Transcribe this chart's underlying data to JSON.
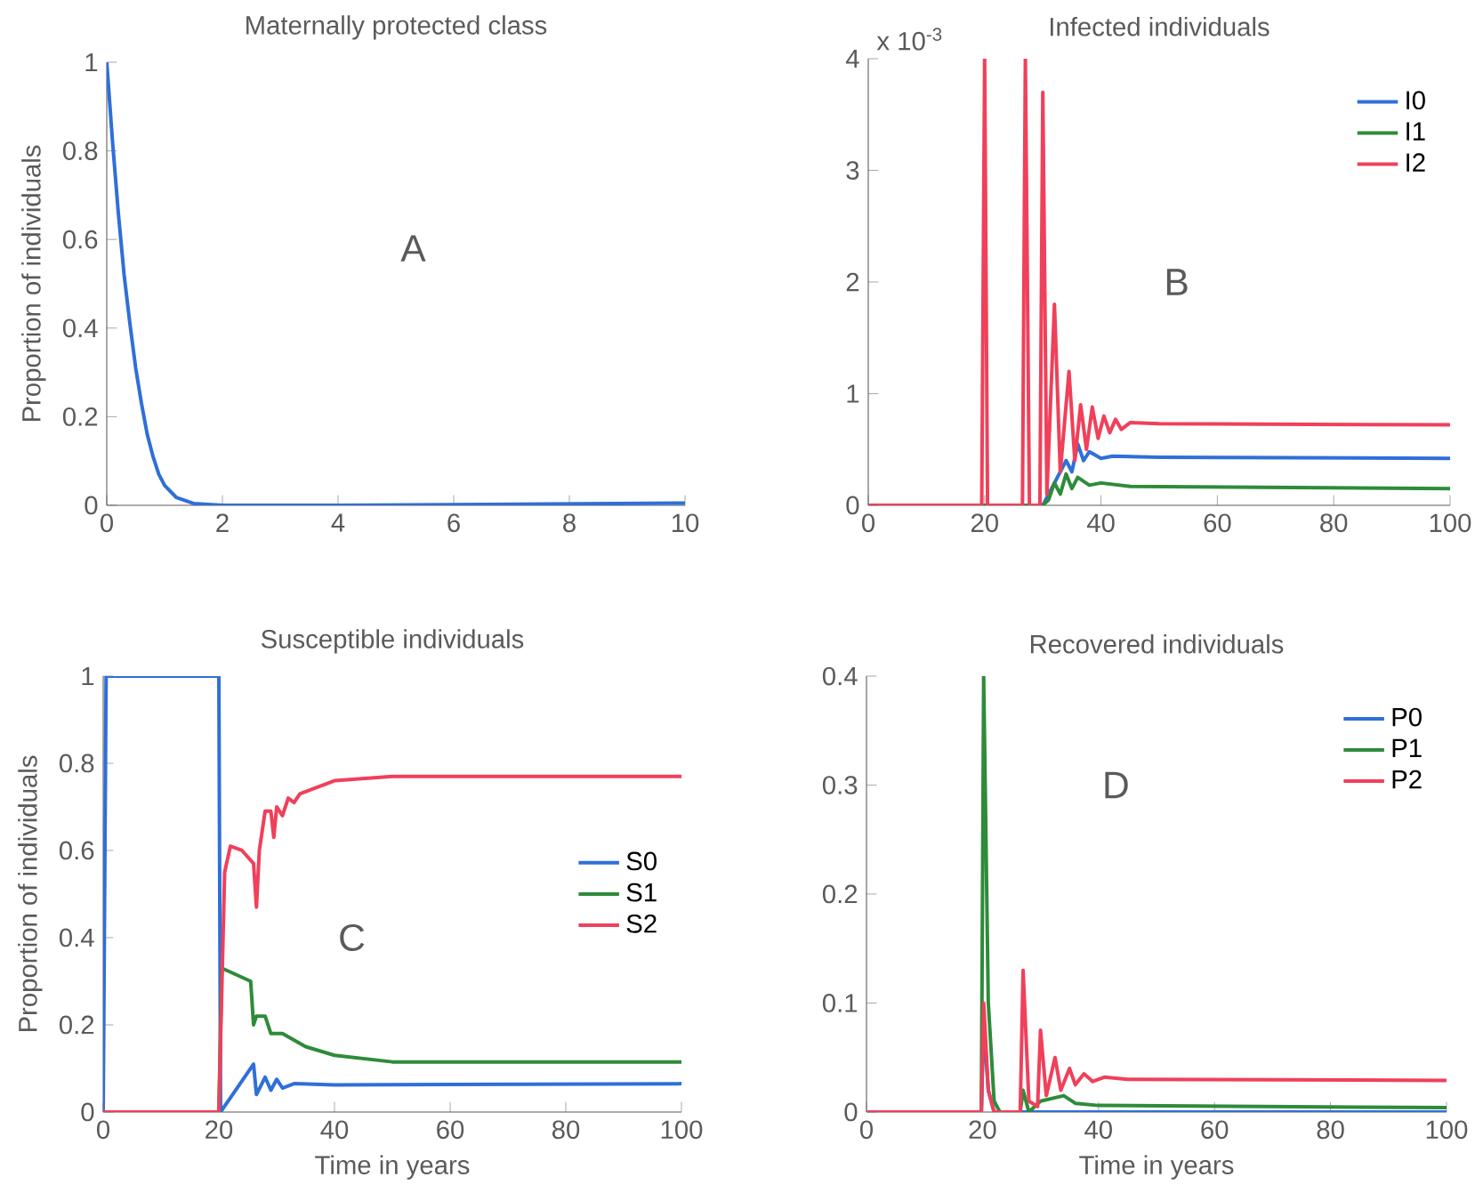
{
  "chart_data": [
    {
      "type": "line",
      "title": "Maternally protected class",
      "ylabel": "Proportion of individuals",
      "xlim": [
        0,
        10
      ],
      "ylim": [
        0,
        1
      ],
      "xticks": [
        0,
        2,
        4,
        6,
        8,
        10
      ],
      "yticks": [
        0,
        0.2,
        0.4,
        0.6,
        0.8,
        1
      ],
      "annotations": [
        "A"
      ],
      "series": [
        {
          "color": "#2f6fd8",
          "x": [
            0,
            0.1,
            0.2,
            0.3,
            0.4,
            0.5,
            0.6,
            0.7,
            0.8,
            0.9,
            1,
            1.2,
            1.5,
            2,
            4,
            10
          ],
          "values": [
            1,
            0.82,
            0.66,
            0.52,
            0.41,
            0.31,
            0.23,
            0.16,
            0.11,
            0.07,
            0.045,
            0.018,
            0.004,
            0,
            0,
            0.005
          ]
        }
      ]
    },
    {
      "type": "line",
      "title": "Infected individuals",
      "xlim": [
        0,
        100
      ],
      "ylim": [
        0,
        4
      ],
      "xticks": [
        0,
        20,
        40,
        60,
        80,
        100
      ],
      "yticks": [
        0,
        1,
        2,
        3,
        4
      ],
      "annotations": [
        "B",
        "x 10$^{-3}$"
      ],
      "legend": "top right",
      "series": [
        {
          "name": "I0",
          "color": "#2f6fd8",
          "x": [
            0,
            30,
            32,
            34,
            35,
            36,
            37,
            38,
            40,
            42,
            50,
            100
          ],
          "values": [
            0,
            0,
            0.2,
            0.4,
            0.3,
            0.55,
            0.4,
            0.48,
            0.42,
            0.44,
            0.43,
            0.42
          ]
        },
        {
          "name": "I1",
          "color": "#2e8b3a",
          "x": [
            0,
            30,
            31,
            32,
            33,
            34,
            35,
            36,
            38,
            40,
            45,
            100
          ],
          "values": [
            0,
            0,
            0.05,
            0.2,
            0.1,
            0.28,
            0.15,
            0.25,
            0.18,
            0.2,
            0.17,
            0.15
          ]
        },
        {
          "name": "I2",
          "color": "#f0405a",
          "x": [
            0,
            19.5,
            20,
            20.5,
            26.5,
            27,
            27.7,
            29.5,
            30,
            30.7,
            32,
            33,
            34.5,
            35.5,
            36.5,
            37.5,
            38.5,
            39.5,
            40.5,
            41.5,
            42.5,
            43.5,
            45,
            50,
            100
          ],
          "values": [
            0,
            0,
            4,
            0,
            0,
            4,
            0,
            0,
            3.7,
            0.1,
            1.8,
            0.3,
            1.2,
            0.4,
            0.9,
            0.5,
            0.88,
            0.6,
            0.8,
            0.65,
            0.77,
            0.68,
            0.74,
            0.73,
            0.72
          ]
        }
      ]
    },
    {
      "type": "line",
      "title": "Susceptible individuals",
      "xlabel": "Time in years",
      "ylabel": "Proportion of individuals",
      "xlim": [
        0,
        100
      ],
      "ylim": [
        0,
        1
      ],
      "xticks": [
        0,
        20,
        40,
        60,
        80,
        100
      ],
      "yticks": [
        0,
        0.2,
        0.4,
        0.6,
        0.8,
        1
      ],
      "annotations": [
        "C"
      ],
      "legend": "right",
      "series": [
        {
          "name": "S0",
          "color": "#2f6fd8",
          "x": [
            0,
            0.5,
            20,
            20.3,
            26,
            26.5,
            28,
            29,
            30,
            31,
            33,
            40,
            100
          ],
          "values": [
            0,
            1,
            1,
            0,
            0.11,
            0.04,
            0.08,
            0.05,
            0.075,
            0.055,
            0.065,
            0.062,
            0.065
          ]
        },
        {
          "name": "S1",
          "color": "#2e8b3a",
          "x": [
            0,
            20,
            20.5,
            25.5,
            26,
            26.5,
            28,
            29,
            31,
            35,
            40,
            50,
            100
          ],
          "values": [
            0,
            0,
            0.33,
            0.3,
            0.2,
            0.22,
            0.22,
            0.18,
            0.18,
            0.15,
            0.13,
            0.115,
            0.115
          ]
        },
        {
          "name": "S2",
          "color": "#f0405a",
          "x": [
            0,
            20,
            21,
            22,
            24,
            26,
            26.5,
            27,
            28,
            29,
            29.5,
            30,
            31,
            32,
            33,
            34,
            36,
            40,
            50,
            100
          ],
          "values": [
            0,
            0,
            0.55,
            0.61,
            0.6,
            0.57,
            0.47,
            0.6,
            0.69,
            0.69,
            0.63,
            0.7,
            0.68,
            0.72,
            0.71,
            0.73,
            0.74,
            0.76,
            0.77,
            0.77
          ]
        }
      ]
    },
    {
      "type": "line",
      "title": "Recovered individuals",
      "xlabel": "Time in years",
      "xlim": [
        0,
        100
      ],
      "ylim": [
        0,
        0.4
      ],
      "xticks": [
        0,
        20,
        40,
        60,
        80,
        100
      ],
      "yticks": [
        0,
        0.1,
        0.2,
        0.3,
        0.4
      ],
      "annotations": [
        "D"
      ],
      "legend": "top right",
      "series": [
        {
          "name": "P0",
          "color": "#2f6fd8",
          "x": [
            0,
            19.8,
            20.2,
            21,
            22,
            100
          ],
          "values": [
            0,
            0,
            0.08,
            0.02,
            0,
            0
          ]
        },
        {
          "name": "P1",
          "color": "#2e8b3a",
          "x": [
            0,
            19.8,
            20.2,
            21,
            22,
            23,
            26.5,
            27,
            28,
            30,
            34,
            36,
            40,
            100
          ],
          "values": [
            0,
            0,
            0.4,
            0.1,
            0.01,
            0,
            0,
            0.02,
            0,
            0.01,
            0.015,
            0.008,
            0.006,
            0.004
          ]
        },
        {
          "name": "P2",
          "color": "#f0405a",
          "x": [
            0,
            19.8,
            20.2,
            21,
            22,
            26.5,
            27,
            28,
            29.5,
            30,
            31,
            32.5,
            33.5,
            35,
            36,
            37.5,
            39,
            41,
            45,
            100
          ],
          "values": [
            0,
            0,
            0.1,
            0.02,
            0,
            0,
            0.13,
            0.01,
            0.005,
            0.075,
            0.015,
            0.05,
            0.02,
            0.04,
            0.025,
            0.035,
            0.028,
            0.032,
            0.03,
            0.029
          ]
        }
      ]
    }
  ]
}
